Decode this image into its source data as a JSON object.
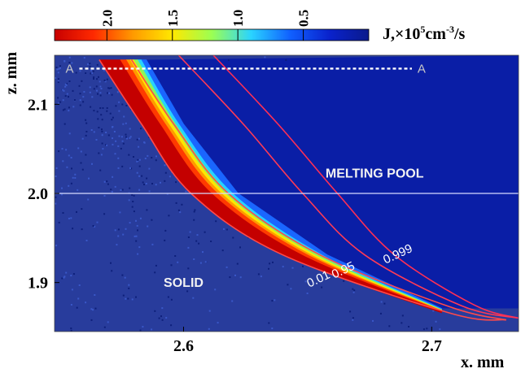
{
  "chart_data": {
    "type": "heatmap",
    "colorbar": {
      "label_prefix": "J,×10",
      "label_exp": "5",
      "label_mid": "cm",
      "label_exp2": "-3",
      "label_suffix": "/s",
      "ticks": [
        "2.0",
        "1.5",
        "1.0",
        "0.5"
      ],
      "tick_values": [
        2.0,
        1.5,
        1.0,
        0.5
      ],
      "range": [
        0,
        2.4
      ],
      "colors": [
        "#c80000",
        "#ff2a00",
        "#ff9a00",
        "#ffe800",
        "#9cff52",
        "#2ad4ff",
        "#1060ff",
        "#0a22cc",
        "#0a1a8c"
      ]
    },
    "xlabel": "x. mm",
    "ylabel": "z. mm",
    "xlim": [
      2.548,
      2.735
    ],
    "ylim": [
      1.845,
      2.155
    ],
    "xticks": [
      2.6,
      2.7
    ],
    "xtick_labels": [
      "2.6",
      "2.7"
    ],
    "yticks": [
      1.9,
      2.0,
      2.1
    ],
    "ytick_labels": [
      "1.9",
      "2.0",
      "2.1"
    ],
    "regions": [
      {
        "label": "MELTING POOL",
        "x": 2.677,
        "y": 2.018
      },
      {
        "label": "SOLID",
        "x": 2.6,
        "y": 1.895
      }
    ],
    "section": {
      "label_left": "A",
      "label_right": "A",
      "y": 2.14,
      "x_start": 2.558,
      "x_end": 2.692
    },
    "reference_line_y": 2.0,
    "contours": [
      {
        "label": "0.01",
        "points": [
          [
            2.566,
            2.15
          ],
          [
            2.583,
            2.078
          ],
          [
            2.603,
            2.0
          ],
          [
            2.64,
            1.931
          ],
          [
            2.707,
            1.866
          ],
          [
            2.73,
            1.858
          ]
        ],
        "label_at": [
          2.655,
          1.9
        ],
        "label_angle": -25
      },
      {
        "label": "0.95",
        "points": [
          [
            2.579,
            2.15
          ],
          [
            2.596,
            2.078
          ],
          [
            2.618,
            2.0
          ],
          [
            2.655,
            1.931
          ],
          [
            2.707,
            1.873
          ],
          [
            2.73,
            1.858
          ]
        ],
        "label_at": [
          2.665,
          1.91
        ],
        "label_angle": -25
      },
      {
        "label": "0.999",
        "points": [
          [
            2.612,
            2.155
          ],
          [
            2.638,
            2.078
          ],
          [
            2.662,
            2.0
          ],
          [
            2.685,
            1.931
          ],
          [
            2.717,
            1.875
          ],
          [
            2.735,
            1.86
          ]
        ],
        "label_at": [
          2.687,
          1.928
        ],
        "label_angle": -25
      }
    ],
    "extra_contour_points": [
      [
        2.598,
        2.155
      ],
      [
        2.624,
        2.078
      ],
      [
        2.648,
        2.0
      ],
      [
        2.673,
        1.931
      ],
      [
        2.712,
        1.874
      ],
      [
        2.735,
        1.86
      ]
    ],
    "band": {
      "inner_edge_points": [
        [
          2.566,
          2.15
        ],
        [
          2.583,
          2.078
        ],
        [
          2.603,
          2.0
        ],
        [
          2.64,
          1.931
        ],
        [
          2.704,
          1.866
        ]
      ],
      "outer_edge_points": [
        [
          2.585,
          2.15
        ],
        [
          2.6,
          2.078
        ],
        [
          2.622,
          2.0
        ],
        [
          2.658,
          1.931
        ],
        [
          2.704,
          1.871
        ]
      ],
      "peak": 2.2
    }
  }
}
